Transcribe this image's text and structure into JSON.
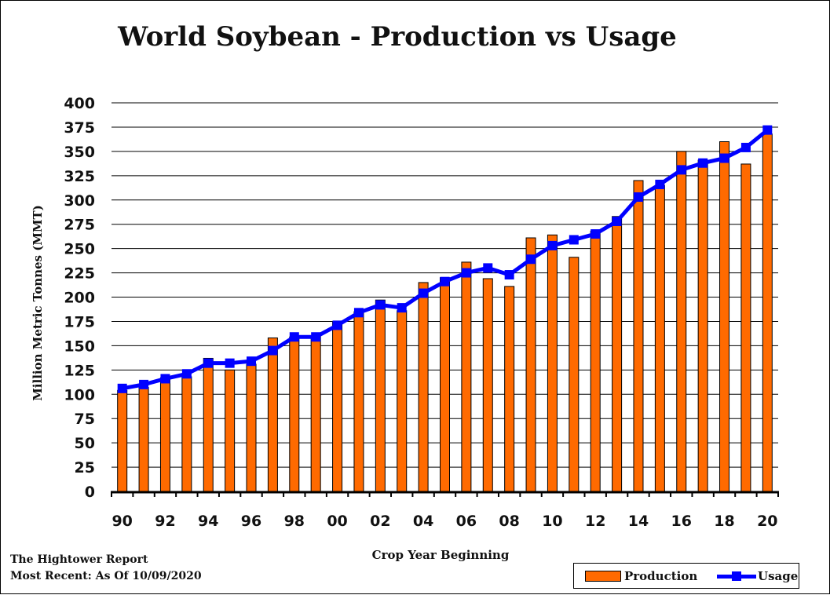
{
  "colors": {
    "production": "#ff6a00",
    "usage": "#0000ff",
    "grid": "#000000"
  },
  "footer": {
    "line1": "The Hightower Report",
    "line2": "Most Recent: As Of 10/09/2020"
  },
  "legend": {
    "production_label": "Production",
    "usage_label": "Usage"
  },
  "chart_data": {
    "type": "bar",
    "title": "World Soybean - Production vs Usage",
    "xlabel": "Crop Year Beginning",
    "ylabel": "Million Metric Tonnes (MMT)",
    "ylim": [
      0,
      400
    ],
    "yticks": [
      0,
      25,
      50,
      75,
      100,
      125,
      150,
      175,
      200,
      225,
      250,
      275,
      300,
      325,
      350,
      375,
      400
    ],
    "grid": true,
    "legend_position": "bottom-right",
    "categories": [
      "90",
      "91",
      "92",
      "93",
      "94",
      "95",
      "96",
      "97",
      "98",
      "99",
      "00",
      "01",
      "02",
      "03",
      "04",
      "05",
      "06",
      "07",
      "08",
      "09",
      "10",
      "11",
      "12",
      "13",
      "14",
      "15",
      "16",
      "17",
      "18",
      "19",
      "20"
    ],
    "xtick_labels": [
      "90",
      "",
      "92",
      "",
      "94",
      "",
      "96",
      "",
      "98",
      "",
      "00",
      "",
      "02",
      "",
      "04",
      "",
      "06",
      "",
      "08",
      "",
      "10",
      "",
      "12",
      "",
      "14",
      "",
      "16",
      "",
      "18",
      "",
      "20"
    ],
    "series": [
      {
        "name": "Production",
        "type": "bar",
        "values": [
          104,
          107,
          117,
          118,
          137,
          125,
          131,
          158,
          159,
          160,
          175,
          185,
          197,
          186,
          215,
          220,
          236,
          219,
          211,
          261,
          264,
          241,
          268,
          283,
          320,
          315,
          350,
          341,
          360,
          337,
          368
        ]
      },
      {
        "name": "Usage",
        "type": "line",
        "values": [
          106,
          110,
          116,
          121,
          132,
          132,
          134,
          145,
          159,
          159,
          171,
          184,
          192,
          189,
          204,
          216,
          225,
          230,
          223,
          239,
          253,
          259,
          265,
          278,
          303,
          316,
          331,
          338,
          343,
          354,
          372
        ]
      }
    ]
  }
}
